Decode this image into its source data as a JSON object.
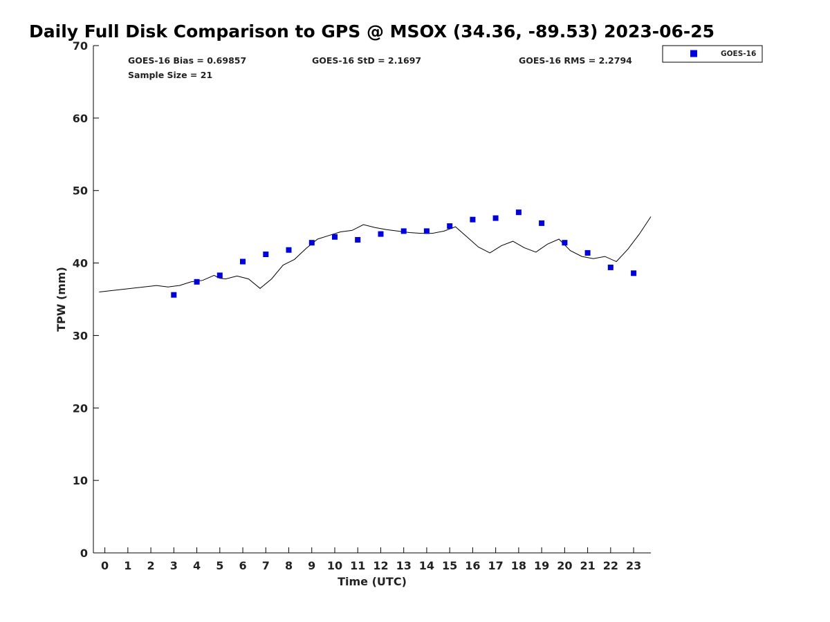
{
  "chart_data": {
    "type": "scatter",
    "title": "Daily Full Disk Comparison to GPS @ MSOX (34.36, -89.53) 2023-06-25",
    "xlabel": "Time (UTC)",
    "ylabel": "TPW (mm)",
    "xlim": [
      -0.5,
      23.75
    ],
    "ylim": [
      0,
      70
    ],
    "xticks": [
      "0",
      "1",
      "2",
      "3",
      "4",
      "5",
      "6",
      "7",
      "8",
      "9",
      "10",
      "11",
      "12",
      "13",
      "14",
      "15",
      "16",
      "17",
      "18",
      "19",
      "20",
      "21",
      "22",
      "23"
    ],
    "yticks": [
      "0",
      "10",
      "20",
      "30",
      "40",
      "50",
      "60",
      "70"
    ],
    "grid": false,
    "legend": {
      "placement": "outside-top-right"
    },
    "stats": {
      "bias": "GOES-16 Bias = 0.69857",
      "std": "GOES-16 StD = 2.1697",
      "rms": "GOES-16 RMS = 2.2794",
      "sample": "Sample Size = 21"
    },
    "series": [
      {
        "name": "GOES-16",
        "type": "scatter",
        "marker": "square",
        "color": "#0000dd",
        "points": [
          [
            3,
            35.6
          ],
          [
            4,
            37.4
          ],
          [
            5,
            38.3
          ],
          [
            6,
            40.2
          ],
          [
            7,
            41.2
          ],
          [
            8,
            41.8
          ],
          [
            9,
            42.8
          ],
          [
            10,
            43.6
          ],
          [
            11,
            43.2
          ],
          [
            12,
            44.0
          ],
          [
            13,
            44.4
          ],
          [
            14,
            44.4
          ],
          [
            15,
            45.1
          ],
          [
            16,
            46.0
          ],
          [
            17,
            46.2
          ],
          [
            18,
            47.0
          ],
          [
            19,
            45.5
          ],
          [
            20,
            42.8
          ],
          [
            21,
            41.4
          ],
          [
            22,
            39.4
          ],
          [
            23,
            38.6
          ]
        ]
      },
      {
        "type": "line",
        "color": "#000000",
        "points": [
          [
            -0.25,
            36.0
          ],
          [
            2.25,
            36.9
          ],
          [
            2.75,
            36.7
          ],
          [
            3.25,
            36.9
          ],
          [
            3.75,
            37.4
          ],
          [
            4.25,
            37.6
          ],
          [
            4.75,
            38.3
          ],
          [
            5.0,
            37.9
          ],
          [
            5.25,
            37.8
          ],
          [
            5.75,
            38.2
          ],
          [
            6.25,
            37.8
          ],
          [
            6.75,
            36.5
          ],
          [
            7.25,
            37.8
          ],
          [
            7.75,
            39.7
          ],
          [
            8.25,
            40.5
          ],
          [
            8.75,
            42.0
          ],
          [
            9.25,
            43.3
          ],
          [
            9.75,
            43.8
          ],
          [
            10.25,
            44.3
          ],
          [
            10.75,
            44.5
          ],
          [
            11.25,
            45.3
          ],
          [
            11.75,
            44.9
          ],
          [
            12.25,
            44.6
          ],
          [
            12.75,
            44.4
          ],
          [
            13.25,
            44.2
          ],
          [
            13.75,
            44.1
          ],
          [
            14.25,
            44.1
          ],
          [
            14.75,
            44.4
          ],
          [
            15.25,
            45.0
          ],
          [
            15.75,
            43.6
          ],
          [
            16.25,
            42.2
          ],
          [
            16.75,
            41.4
          ],
          [
            17.25,
            42.4
          ],
          [
            17.75,
            43.0
          ],
          [
            18.25,
            42.1
          ],
          [
            18.75,
            41.5
          ],
          [
            19.25,
            42.6
          ],
          [
            19.75,
            43.3
          ],
          [
            20.25,
            41.7
          ],
          [
            20.75,
            40.9
          ],
          [
            21.25,
            40.6
          ],
          [
            21.75,
            40.9
          ],
          [
            22.25,
            40.2
          ],
          [
            22.75,
            41.9
          ],
          [
            23.25,
            44.0
          ],
          [
            23.75,
            46.4
          ]
        ]
      }
    ]
  }
}
